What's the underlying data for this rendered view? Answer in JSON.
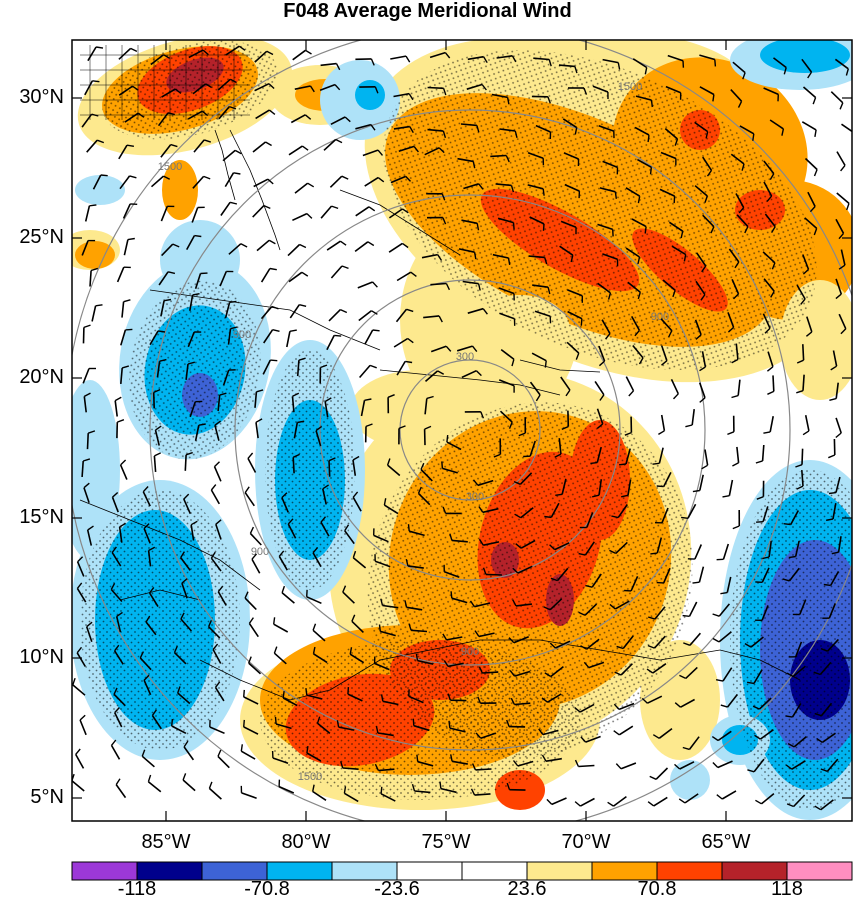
{
  "title": "F048 Average Meridional Wind",
  "map": {
    "lat_ticks": [
      "30°N",
      "25°N",
      "20°N",
      "15°N",
      "10°N",
      "5°N"
    ],
    "lon_ticks": [
      "85°W",
      "80°W",
      "75°W",
      "70°W",
      "65°W"
    ],
    "range_ring_labels": [
      "300",
      "900",
      "1500"
    ],
    "stippling": true,
    "coastlines": true,
    "wind_barbs": true
  },
  "colorbar": {
    "colors": [
      "#9c38d8",
      "#00008c",
      "#3d63d6",
      "#00b4f0",
      "#aee2f8",
      "#ffffff",
      "#ffffff",
      "#fde98e",
      "#ffa200",
      "#ff4200",
      "#b5222a",
      "#ff8ec0"
    ],
    "labels": [
      "-118",
      "-70.8",
      "-23.6",
      "23.6",
      "70.8",
      "118"
    ]
  },
  "palette": {
    "light_yellow": "#fde98e",
    "orange": "#ffa200",
    "red_orange": "#ff4200",
    "dark_red": "#b5222a",
    "light_blue": "#aee2f8",
    "cyan": "#00b4f0",
    "blue": "#3d63d6",
    "navy": "#00008c"
  }
}
